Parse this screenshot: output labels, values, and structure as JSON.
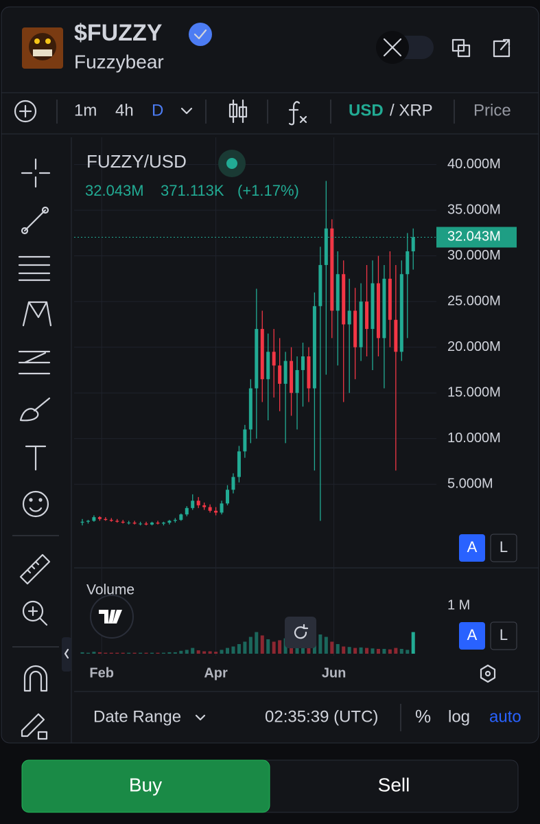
{
  "header": {
    "symbol": "$FUZZY",
    "name": "Fuzzybear"
  },
  "toolbar": {
    "intervals": [
      "1m",
      "4h",
      "D"
    ],
    "quote": "USD",
    "pair_rest": "/ XRP",
    "price": "Price"
  },
  "legend": {
    "close": "32.043M",
    "change": "371.113K",
    "change_pct": "(+1.17%)"
  },
  "scale_buttons": [
    "A",
    "L"
  ],
  "controls": {
    "date_range": "Date Range",
    "time": "02:35:39 (UTC)",
    "percent": "%",
    "log": "log",
    "auto": "auto"
  },
  "actions": {
    "buy": "Buy",
    "sell": "Sell"
  },
  "chart_data": {
    "type": "candlestick",
    "title": "FUZZY/USD",
    "up_color": "#22ab94",
    "down_color": "#f23645",
    "x": [
      0,
      3,
      6,
      9,
      12,
      15,
      18,
      21,
      24,
      27,
      30,
      33,
      36,
      39,
      42,
      45,
      48,
      51,
      54,
      57,
      60,
      63,
      66,
      69,
      72,
      75,
      78,
      81,
      84,
      87,
      90,
      93,
      96,
      99,
      102,
      105,
      108,
      111,
      114,
      117,
      120,
      123,
      126,
      129,
      132,
      135,
      138,
      141,
      144,
      147,
      150,
      153,
      156,
      159,
      162,
      165,
      168,
      171
    ],
    "open": [
      0.8,
      0.9,
      1.0,
      1.4,
      1.2,
      1.1,
      1.0,
      0.9,
      0.8,
      0.8,
      0.7,
      0.7,
      0.6,
      0.8,
      0.7,
      0.8,
      1.0,
      1.1,
      1.7,
      2.4,
      3.2,
      2.7,
      2.5,
      2.1,
      1.9,
      2.9,
      4.4,
      5.8,
      8.6,
      11.0,
      15.5,
      22.0,
      16.5,
      19.5,
      18.0,
      16.0,
      18.5,
      15.0,
      17.5,
      19.0,
      15.5,
      24.5,
      29.0,
      33.0,
      24.0,
      28.0,
      22.5,
      24.0,
      20.0,
      25.0,
      22.0,
      27.0,
      21.0,
      27.5,
      23.0,
      19.5,
      28.0,
      30.5
    ],
    "high": [
      1.2,
      1.1,
      1.6,
      1.5,
      1.4,
      1.3,
      1.2,
      1.1,
      1.0,
      1.0,
      0.9,
      0.9,
      0.9,
      1.0,
      0.9,
      1.1,
      1.3,
      1.8,
      2.6,
      3.9,
      3.6,
      3.0,
      2.8,
      2.5,
      3.2,
      4.9,
      6.2,
      9.2,
      11.5,
      16.5,
      26.4,
      24.0,
      21.5,
      22.0,
      21.0,
      19.5,
      20.0,
      19.0,
      20.5,
      20.0,
      26.0,
      31.0,
      38.2,
      34.0,
      30.5,
      29.5,
      27.5,
      26.5,
      27.0,
      29.0,
      29.5,
      30.0,
      29.0,
      30.5,
      29.0,
      29.5,
      32.5,
      33.0
    ],
    "low": [
      0.5,
      0.7,
      0.9,
      1.0,
      1.0,
      0.9,
      0.8,
      0.7,
      0.6,
      0.6,
      0.5,
      0.5,
      0.5,
      0.6,
      0.5,
      0.6,
      0.8,
      1.0,
      1.5,
      2.2,
      2.4,
      2.2,
      1.9,
      1.6,
      1.7,
      2.7,
      4.0,
      5.2,
      7.9,
      9.5,
      10.0,
      14.0,
      12.0,
      14.5,
      13.0,
      9.5,
      12.5,
      11.0,
      13.5,
      14.0,
      6.5,
      1.0,
      17.0,
      21.0,
      18.0,
      14.0,
      15.0,
      16.5,
      18.5,
      19.0,
      17.5,
      19.0,
      15.5,
      20.0,
      6.5,
      18.5,
      21.0,
      28.5
    ],
    "close": [
      0.9,
      1.0,
      1.4,
      1.2,
      1.1,
      1.0,
      0.9,
      0.8,
      0.8,
      0.7,
      0.7,
      0.6,
      0.8,
      0.7,
      0.8,
      1.0,
      1.1,
      1.7,
      2.4,
      3.2,
      2.7,
      2.5,
      2.1,
      1.9,
      2.9,
      4.4,
      5.8,
      8.6,
      11.0,
      15.5,
      22.0,
      16.5,
      19.5,
      18.0,
      16.0,
      18.5,
      15.0,
      17.5,
      19.0,
      15.5,
      24.5,
      29.0,
      33.0,
      24.0,
      28.0,
      22.5,
      24.0,
      20.0,
      25.0,
      22.0,
      27.0,
      21.0,
      27.5,
      23.0,
      19.5,
      28.0,
      30.5,
      32.043
    ],
    "volume": [
      0.03,
      0.02,
      0.04,
      0.03,
      0.02,
      0.02,
      0.02,
      0.02,
      0.02,
      0.02,
      0.02,
      0.02,
      0.02,
      0.02,
      0.02,
      0.03,
      0.03,
      0.06,
      0.08,
      0.12,
      0.07,
      0.05,
      0.05,
      0.04,
      0.08,
      0.12,
      0.15,
      0.2,
      0.25,
      0.35,
      0.45,
      0.38,
      0.3,
      0.25,
      0.28,
      0.32,
      0.22,
      0.2,
      0.18,
      0.2,
      0.3,
      0.4,
      0.35,
      0.25,
      0.2,
      0.15,
      0.14,
      0.12,
      0.13,
      0.12,
      0.11,
      0.1,
      0.1,
      0.09,
      0.12,
      0.1,
      0.08,
      0.45
    ],
    "last_label": "32.043M",
    "xlim": [
      0,
      175
    ],
    "xticks": [
      {
        "value": 10,
        "label": "Feb"
      },
      {
        "value": 69,
        "label": "Apr"
      },
      {
        "value": 130,
        "label": "Jun"
      }
    ],
    "ylim": [
      -4,
      42.6
    ],
    "yticks": [
      {
        "value": 5,
        "label": "5.000M"
      },
      {
        "value": 10,
        "label": "10.000M"
      },
      {
        "value": 15,
        "label": "15.000M"
      },
      {
        "value": 20,
        "label": "20.000M"
      },
      {
        "value": 25,
        "label": "25.000M"
      },
      {
        "value": 30,
        "label": "30.000M"
      },
      {
        "value": 35,
        "label": "35.000M"
      },
      {
        "value": 40,
        "label": "40.000M"
      }
    ],
    "volume_title": "Volume",
    "volume_ylim": [
      0,
      1.6
    ],
    "volume_yticks": [
      {
        "value": 1,
        "label": "1 M"
      }
    ],
    "grid": true
  }
}
